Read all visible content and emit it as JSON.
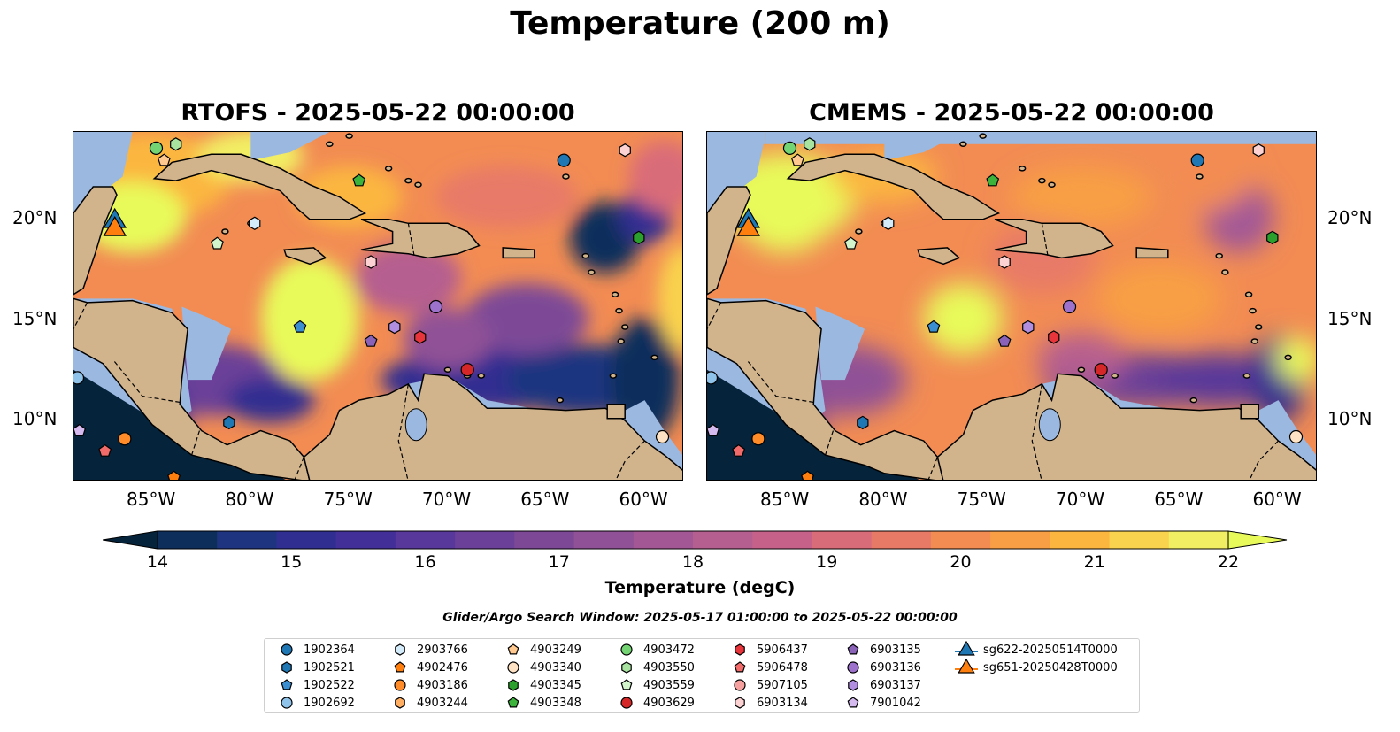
{
  "title": "Temperature (200 m)",
  "panels": [
    {
      "id": "rtofs",
      "title": "RTOFS - 2025-05-22 00:00:00"
    },
    {
      "id": "cmems",
      "title": "CMEMS - 2025-05-22 00:00:00"
    }
  ],
  "axes": {
    "x_ticks": [
      "85°W",
      "80°W",
      "75°W",
      "70°W",
      "65°W",
      "60°W"
    ],
    "y_ticks": [
      "20°N",
      "15°N",
      "10°N"
    ]
  },
  "colorbar": {
    "label": "Temperature (degC)",
    "ticks": [
      "14",
      "15",
      "16",
      "17",
      "18",
      "19",
      "20",
      "21",
      "22"
    ],
    "min": 14,
    "max": 22,
    "extend": "both",
    "colors": [
      "#05233b",
      "#0d2d5b",
      "#1f3480",
      "#302f91",
      "#423098",
      "#58389a",
      "#6b4098",
      "#7d4997",
      "#905196",
      "#a35895",
      "#b55e90",
      "#c6628a",
      "#d96c79",
      "#e77a67",
      "#f28c53",
      "#f89f45",
      "#fbb640",
      "#f9d24e",
      "#f2ee64",
      "#e8fa5a"
    ]
  },
  "search_window": "Glider/Argo Search Window: 2025-05-17 01:00:00 to 2025-05-22 00:00:00",
  "legend": [
    {
      "label": "1902364",
      "marker": "circle",
      "color": "#1f77b4"
    },
    {
      "label": "1902521",
      "marker": "hexagon",
      "color": "#1f77b4"
    },
    {
      "label": "1902522",
      "marker": "pentagon",
      "color": "#3b8fd0"
    },
    {
      "label": "1902692",
      "marker": "circle",
      "color": "#8fc3ea"
    },
    {
      "label": "2903766",
      "marker": "hexagon",
      "color": "#d4ebfa"
    },
    {
      "label": "4902476",
      "marker": "pentagon",
      "color": "#ff7f0e"
    },
    {
      "label": "4903186",
      "marker": "circle",
      "color": "#ff8c28"
    },
    {
      "label": "4903244",
      "marker": "hexagon",
      "color": "#ffae62"
    },
    {
      "label": "4903249",
      "marker": "pentagon",
      "color": "#ffc98f"
    },
    {
      "label": "4903340",
      "marker": "circle",
      "color": "#ffe3c4"
    },
    {
      "label": "4903345",
      "marker": "hexagon",
      "color": "#2ca02c"
    },
    {
      "label": "4903348",
      "marker": "pentagon",
      "color": "#3cb43c"
    },
    {
      "label": "4903472",
      "marker": "circle",
      "color": "#74d474"
    },
    {
      "label": "4903550",
      "marker": "hexagon",
      "color": "#a8e4a0"
    },
    {
      "label": "4903559",
      "marker": "pentagon",
      "color": "#d2f5cc"
    },
    {
      "label": "4903629",
      "marker": "circle",
      "color": "#d62728"
    },
    {
      "label": "5906437",
      "marker": "hexagon",
      "color": "#e8343b"
    },
    {
      "label": "5906478",
      "marker": "pentagon",
      "color": "#f26b6b"
    },
    {
      "label": "5907105",
      "marker": "circle",
      "color": "#f7a0a0"
    },
    {
      "label": "6903134",
      "marker": "hexagon",
      "color": "#fcd2d2"
    },
    {
      "label": "6903135",
      "marker": "pentagon",
      "color": "#8a63b8"
    },
    {
      "label": "6903136",
      "marker": "circle",
      "color": "#9c72cc"
    },
    {
      "label": "6903137",
      "marker": "hexagon",
      "color": "#b18ee0"
    },
    {
      "label": "7901042",
      "marker": "pentagon",
      "color": "#d5baf0"
    },
    {
      "label": "sg622-20250514T0000",
      "marker": "triangle",
      "color": "#1f77b4"
    },
    {
      "label": "sg651-20250428T0000",
      "marker": "triangle",
      "color": "#ff7f0e"
    }
  ],
  "colors": {
    "land": "#d2b48c",
    "shallow": "#9bb8e0",
    "coast": "#000000",
    "border": "#000000"
  }
}
